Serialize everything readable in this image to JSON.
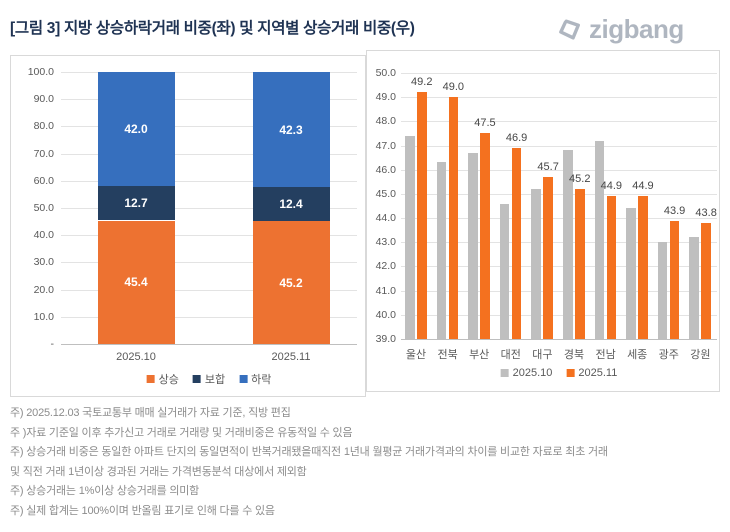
{
  "title": "[그림 3] 지방 상승하락거래 비중(좌) 및 지역별 상승거래 비중(우)",
  "logo": {
    "text": "zigbang",
    "color": "#AFB6C0"
  },
  "chart_data": [
    {
      "type": "bar",
      "variant": "stacked",
      "title": "지방 상승하락거래 비중",
      "categories": [
        "2025.10",
        "2025.11"
      ],
      "series": [
        {
          "name": "상승",
          "color": "#ED7231",
          "values": [
            45.4,
            45.2
          ]
        },
        {
          "name": "보합",
          "color": "#243F60",
          "values": [
            12.7,
            12.4
          ]
        },
        {
          "name": "하락",
          "color": "#366FBE",
          "values": [
            42.0,
            42.3
          ]
        }
      ],
      "ylim": [
        0,
        100
      ],
      "ytick_labels": [
        "100.0",
        "90.0",
        "80.0",
        "70.0",
        "60.0",
        "50.0",
        "40.0",
        "30.0",
        "20.0",
        "10.0",
        "-"
      ],
      "grid": true,
      "legend_position": "bottom"
    },
    {
      "type": "bar",
      "variant": "grouped",
      "title": "지역별 상승거래 비중",
      "categories": [
        "울산",
        "전북",
        "부산",
        "대전",
        "대구",
        "경북",
        "전남",
        "세종",
        "광주",
        "강원"
      ],
      "series": [
        {
          "name": "2025.10",
          "color": "#BFBFBF",
          "show_labels": false,
          "values": [
            47.4,
            46.3,
            46.7,
            44.6,
            45.2,
            46.8,
            47.2,
            44.4,
            43.0,
            43.2
          ]
        },
        {
          "name": "2025.11",
          "color": "#F4711F",
          "show_labels": true,
          "values": [
            49.2,
            49.0,
            47.5,
            46.9,
            45.7,
            45.2,
            44.9,
            44.9,
            43.9,
            43.8
          ]
        }
      ],
      "ylim": [
        39,
        50
      ],
      "ytick_labels": [
        "50.0",
        "49.0",
        "48.0",
        "47.0",
        "46.0",
        "45.0",
        "44.0",
        "43.0",
        "42.0",
        "41.0",
        "40.0",
        "39.0"
      ],
      "grid": true,
      "legend_position": "bottom"
    }
  ],
  "footnotes": [
    "주) 2025.12.03 국토교통부 매매 실거래가 자료 기준, 직방 편집",
    "주 )자료 기준일 이후 추가신고 거래로 거래량 및 거래비중은 유동적일 수 있음",
    "주) 상승거래 비중은 동일한 아파트 단지의 동일면적이 반복거래됐을때직전 1년내 월평균 거래가격과의 차이를 비교한 자료로 최초 거래",
    "및 직전 거래 1년이상 경과된 거래는 가격변동분석 대상에서 제외함",
    "주) 상승거래는 1%이상 상승거래를 의미함",
    "주) 실제 합계는 100%이며 반올림 표기로 인해 다를 수 있음"
  ]
}
